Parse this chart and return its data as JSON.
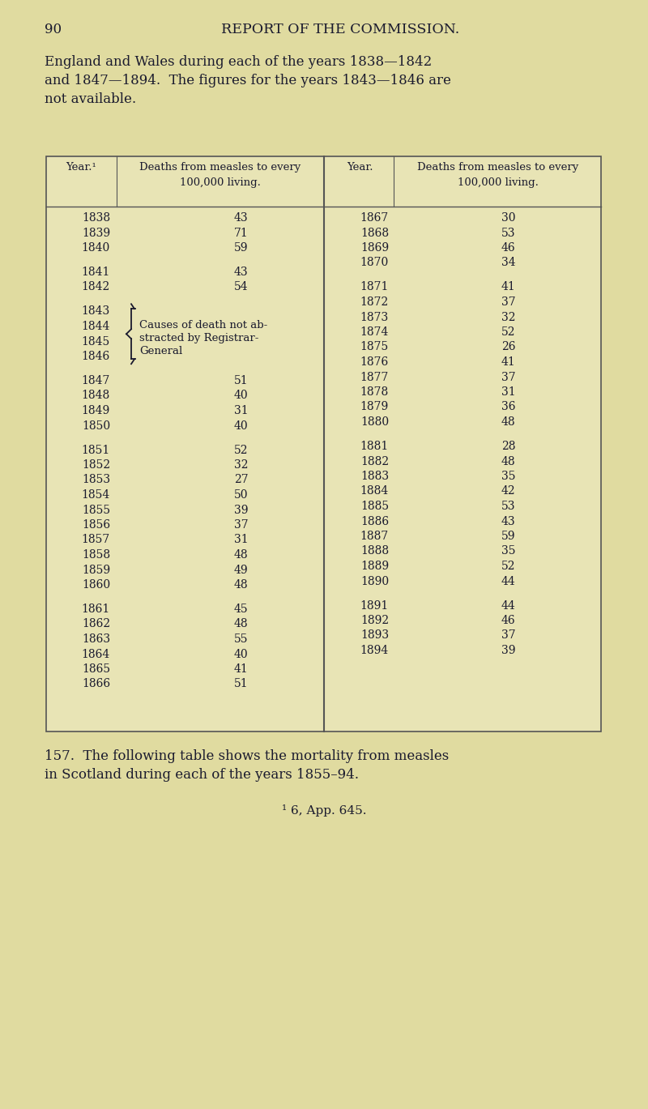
{
  "page_number": "90",
  "header": "REPORT OF THE COMMISSION.",
  "intro_line1": "England and Wales during each of the years 1838—1842",
  "intro_line2": "and 1847—1894.  The figures for the years 1843—1846 are",
  "intro_line3": "not available.",
  "col_left_year_header": "Year.¹",
  "col_left_deaths_header": "Deaths from measles to every\n100,000 living.",
  "col_right_year_header": "Year.",
  "col_right_deaths_header": "Deaths from measles to every\n100,000 living.",
  "bracket_line1": "Causes of death not ab-",
  "bracket_line2": "stracted by Registrar-",
  "bracket_line3": "General",
  "left_years": [
    "1838",
    "1839",
    "1840",
    "1841",
    "1842",
    "1843",
    "1844",
    "1845",
    "1846",
    "1847",
    "1848",
    "1849",
    "1850",
    "1851",
    "1852",
    "1853",
    "1854",
    "1855",
    "1856",
    "1857",
    "1858",
    "1859",
    "1860",
    "1861",
    "1862",
    "1863",
    "1864",
    "1865",
    "1866"
  ],
  "left_values": [
    "43",
    "71",
    "59",
    "43",
    "54",
    "",
    "",
    "",
    "",
    "51",
    "40",
    "31",
    "40",
    "52",
    "32",
    "27",
    "50",
    "39",
    "37",
    "31",
    "48",
    "49",
    "48",
    "45",
    "48",
    "55",
    "40",
    "41",
    "51"
  ],
  "right_years": [
    "1867",
    "1868",
    "1869",
    "1870",
    "1871",
    "1872",
    "1873",
    "1874",
    "1875",
    "1876",
    "1877",
    "1878",
    "1879",
    "1880",
    "1881",
    "1882",
    "1883",
    "1884",
    "1885",
    "1886",
    "1887",
    "1888",
    "1889",
    "1890",
    "1891",
    "1892",
    "1893",
    "1894"
  ],
  "right_values": [
    "30",
    "53",
    "46",
    "34",
    "41",
    "37",
    "32",
    "52",
    "26",
    "41",
    "37",
    "31",
    "36",
    "48",
    "28",
    "48",
    "35",
    "42",
    "53",
    "43",
    "59",
    "35",
    "52",
    "44",
    "44",
    "46",
    "37",
    "39"
  ],
  "footer_line1": "157.  The following table shows the mortality from measles",
  "footer_line2": "in Scotland during each of the years 1855–94.",
  "footnote": "¹ 6, App. 645.",
  "bg_color": "#e0dba0",
  "table_bg": "#e8e4b5",
  "text_color": "#1a1a2e",
  "border_color": "#555555"
}
